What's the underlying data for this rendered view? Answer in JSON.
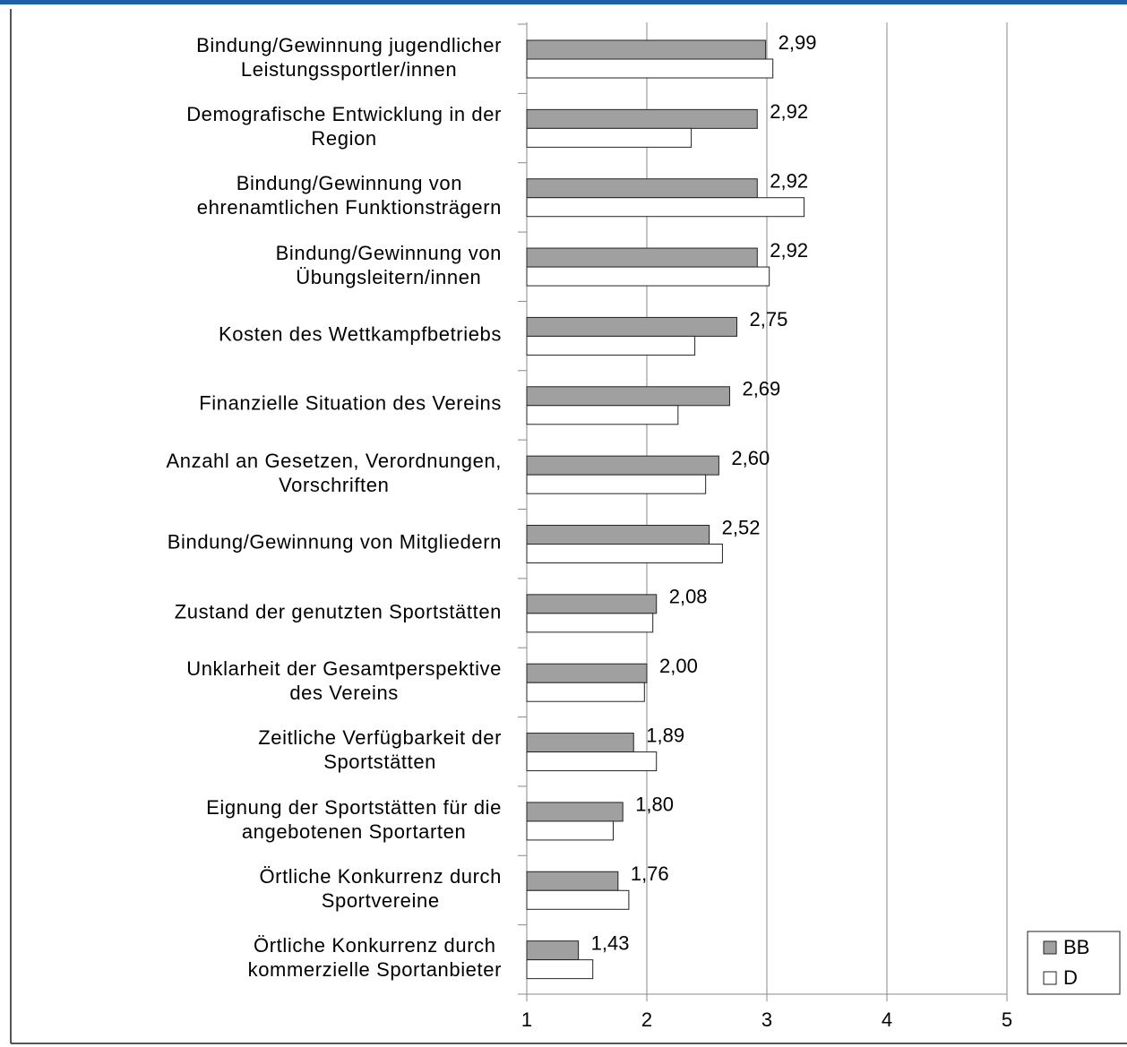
{
  "chart_data": {
    "type": "bar",
    "orientation": "horizontal",
    "categories": [
      "Bindung/Gewinnung jugendlicher\nLeistungssportler/innen",
      "Demografische Entwicklung in der\nRegion",
      "Bindung/Gewinnung von\nehrenamtlichen Funktionsträgern",
      "Bindung/Gewinnung von\nÜbungsleitern/innen",
      "Kosten des Wettkampfbetriebs",
      "Finanzielle Situation des Vereins",
      "Anzahl an Gesetzen, Verordnungen,\nVorschriften",
      "Bindung/Gewinnung von Mitgliedern",
      "Zustand der genutzten Sportstätten",
      "Unklarheit der Gesamtperspektive\ndes Vereins",
      "Zeitliche Verfügbarkeit der\nSportstätten",
      "Eignung der Sportstätten für die\nangebotenen Sportarten",
      "Örtliche Konkurrenz durch\nSportvereine",
      "Örtliche Konkurrenz durch\nkommerzielle Sportanbieter"
    ],
    "series": [
      {
        "name": "BB",
        "color": "#a0a0a0",
        "values": [
          2.99,
          2.92,
          2.92,
          2.92,
          2.75,
          2.69,
          2.6,
          2.52,
          2.08,
          2.0,
          1.89,
          1.8,
          1.76,
          1.43
        ],
        "value_labels": [
          "2,99",
          "2,92",
          "2,92",
          "2,92",
          "2,75",
          "2,69",
          "2,60",
          "2,52",
          "2,08",
          "2,00",
          "1,89",
          "1,80",
          "1,76",
          "1,43"
        ]
      },
      {
        "name": "D",
        "color": "#ffffff",
        "values": [
          3.05,
          2.37,
          3.31,
          3.02,
          2.4,
          2.26,
          2.49,
          2.63,
          2.05,
          1.98,
          2.08,
          1.72,
          1.85,
          1.55
        ]
      }
    ],
    "xlim": [
      1,
      5
    ],
    "xticks": [
      1,
      2,
      3,
      4,
      5
    ],
    "grid": true,
    "legend": "lower right"
  }
}
